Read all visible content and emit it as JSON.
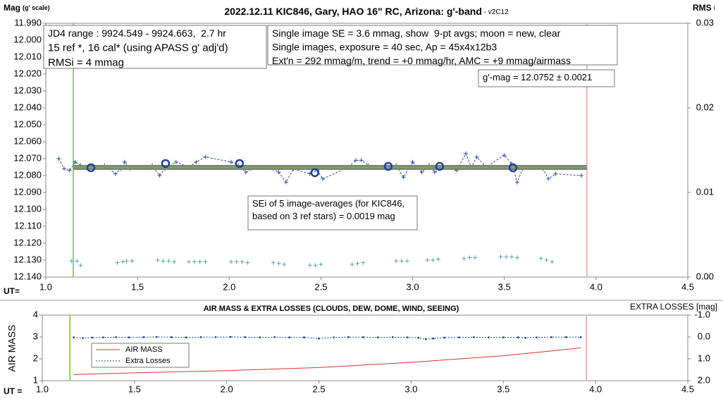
{
  "chart_data": [
    {
      "type": "scatter",
      "title": "2022.12.11 KIC846, Gary, HAO 16\" RC, Arizona: g'-band",
      "title_note": " - v2C12",
      "ylabel": "Mag",
      "ylabel_note": "(g' scale)",
      "y2label": "RMS",
      "y2label_note": "i",
      "xlabel": "UT=",
      "xlim": [
        1.0,
        4.5
      ],
      "xticks": [
        {
          "value": 1,
          "label": "1.0"
        },
        {
          "value": 1.5,
          "label": "1.5"
        },
        {
          "value": 2,
          "label": "2.0"
        },
        {
          "value": 2.5,
          "label": "2.5"
        },
        {
          "value": 3,
          "label": "3.0"
        },
        {
          "value": 3.5,
          "label": "3.5"
        },
        {
          "value": 4,
          "label": "4.0"
        },
        {
          "value": 4.5,
          "label": "4.5"
        }
      ],
      "ylim": [
        12.14,
        11.99
      ],
      "yticks": [
        {
          "value": 11.99,
          "label": "11.990"
        },
        {
          "value": 12.0,
          "label": "12.000"
        },
        {
          "value": 12.01,
          "label": "12.010"
        },
        {
          "value": 12.02,
          "label": "12.020"
        },
        {
          "value": 12.03,
          "label": "12.030"
        },
        {
          "value": 12.04,
          "label": "12.040"
        },
        {
          "value": 12.05,
          "label": "12.050"
        },
        {
          "value": 12.06,
          "label": "12.060"
        },
        {
          "value": 12.07,
          "label": "12.070"
        },
        {
          "value": 12.08,
          "label": "12.080"
        },
        {
          "value": 12.09,
          "label": "12.090"
        },
        {
          "value": 12.1,
          "label": "12.100"
        },
        {
          "value": 12.11,
          "label": "12.110"
        },
        {
          "value": 12.12,
          "label": "12.120"
        },
        {
          "value": 12.13,
          "label": "12.130"
        },
        {
          "value": 12.14,
          "label": "12.140"
        }
      ],
      "y2lim": [
        0,
        0.03
      ],
      "y2ticks": [
        {
          "value": 0,
          "label": "0.00"
        },
        0.01,
        0.02,
        0.03
      ],
      "vlines": [
        {
          "x": 1.15,
          "color": "#92d050"
        },
        {
          "x": 3.95,
          "color": "#f4b4b4"
        }
      ],
      "series": [
        {
          "color": "#2f55a4",
          "line": "dashed",
          "marker": "plus",
          "x": [
            1.07,
            1.1,
            1.13,
            1.16,
            1.19,
            1.32,
            1.38,
            1.41,
            1.43,
            1.46,
            1.58,
            1.62,
            1.65,
            1.71,
            1.78,
            1.82,
            1.87,
            2.01,
            2.05,
            2.09,
            2.12,
            2.24,
            2.27,
            2.31,
            2.35,
            2.44,
            2.48,
            2.51,
            2.65,
            2.69,
            2.72,
            2.76,
            2.91,
            2.95,
            3.0,
            3.05,
            3.09,
            3.12,
            3.17,
            3.24,
            3.29,
            3.32,
            3.35,
            3.4,
            3.5,
            3.54,
            3.57,
            3.6,
            3.71,
            3.74,
            3.78,
            3.92
          ],
          "values": [
            12.07,
            12.076,
            12.077,
            12.072,
            12.074,
            12.074,
            12.079,
            12.076,
            12.072,
            12.076,
            12.074,
            12.08,
            12.076,
            12.072,
            12.075,
            12.072,
            12.069,
            12.072,
            12.074,
            12.078,
            12.076,
            12.076,
            12.078,
            12.084,
            12.076,
            12.079,
            12.077,
            12.082,
            12.075,
            12.071,
            12.071,
            12.074,
            12.074,
            12.081,
            12.072,
            12.078,
            12.074,
            12.078,
            12.075,
            12.077,
            12.067,
            12.075,
            12.069,
            12.075,
            12.068,
            12.073,
            12.084,
            12.076,
            12.076,
            12.082,
            12.079,
            12.08
          ]
        },
        {
          "color": "#808080",
          "line": "solid",
          "width": 7,
          "x": [
            1.15,
            3.95
          ],
          "values": [
            12.0752,
            12.0752
          ]
        },
        {
          "color": "#70ad47",
          "line": "solid",
          "width": 2.5,
          "x": [
            1.15,
            3.95
          ],
          "values": [
            12.0752,
            12.0752
          ]
        },
        {
          "color": "#1f3fa0",
          "marker": "circle",
          "x": [
            1.246,
            1.653,
            2.056,
            2.467,
            2.867,
            3.147,
            3.547
          ],
          "values": [
            12.0754,
            12.0729,
            12.0729,
            12.0783,
            12.0746,
            12.0746,
            12.0754
          ]
        },
        {
          "color": "#5ba3b0",
          "marker": "plus",
          "axis": "y2",
          "x": [
            1.14,
            1.17,
            1.19,
            1.39,
            1.42,
            1.44,
            1.47,
            1.61,
            1.64,
            1.67,
            1.7,
            1.78,
            1.81,
            1.84,
            1.87,
            2.01,
            2.04,
            2.07,
            2.1,
            2.24,
            2.27,
            2.3,
            2.44,
            2.47,
            2.5,
            2.67,
            2.7,
            2.73,
            2.91,
            2.94,
            2.97,
            3.08,
            3.11,
            3.14,
            3.28,
            3.31,
            3.34,
            3.48,
            3.51,
            3.54,
            3.57,
            3.7,
            3.73,
            3.76
          ],
          "values": [
            0.0019,
            0.0019,
            0.0014,
            0.0017,
            0.0018,
            0.0019,
            0.0019,
            0.002,
            0.0019,
            0.0019,
            0.0018,
            0.0018,
            0.0018,
            0.0018,
            0.0018,
            0.0018,
            0.0018,
            0.0018,
            0.0017,
            0.0017,
            0.0016,
            0.0015,
            0.0014,
            0.0014,
            0.0015,
            0.0015,
            0.0016,
            0.0017,
            0.0019,
            0.0019,
            0.0019,
            0.002,
            0.002,
            0.0021,
            0.0022,
            0.0023,
            0.0023,
            0.0024,
            0.0024,
            0.0024,
            0.0023,
            0.0022,
            0.002,
            0.0018
          ]
        }
      ],
      "annotations": [
        {
          "lines": [
            "JD4 range : 9924.549 - 9924.663,  2.7 hr",
            "15 ref *, 16 cal* (using APASS g' adj'd)",
            "RMSi = 4 mmag"
          ]
        },
        {
          "lines": [
            "Single image SE = 3.6 mmag, show  9-pt avgs; moon = new, clear",
            "Single images, exposure = 40 sec, Ap = 45x4x12b3",
            "Ext'n = 292 mmag/m, trend = +0 mmag/hr, AMC = +9 mmag/airmass"
          ]
        },
        {
          "lines": [
            "g'-mag = 12.0752 ± 0.0021"
          ]
        },
        {
          "lines": [
            "SEi of 5 image-averages (for KIC846,",
            "based on 3 ref stars) = 0.0019 mag"
          ]
        }
      ]
    },
    {
      "type": "line",
      "title": "AIR MASS & EXTRA LOSSES (CLOUDS, DEW, DOME, WIND, SEEING)",
      "ylabel": "AIR MASS",
      "y2label": "EXTRA LOSSES [mag]",
      "xlabel": "UT =",
      "xlim": [
        1.0,
        4.5
      ],
      "xticks": [
        {
          "value": 1,
          "label": "1.0"
        },
        {
          "value": 1.5,
          "label": "1.5"
        },
        {
          "value": 2,
          "label": "2.0"
        },
        {
          "value": 2.5,
          "label": "2.5"
        },
        {
          "value": 3,
          "label": "3.0"
        },
        {
          "value": 3.5,
          "label": "3.5"
        },
        {
          "value": 4,
          "label": "4.0"
        },
        {
          "value": 4.5,
          "label": "4.5"
        }
      ],
      "ylim": [
        1,
        4
      ],
      "yticks": [
        1,
        2,
        3,
        4
      ],
      "y2lim": [
        2.0,
        -1.0
      ],
      "y2ticks": [
        {
          "value": -1,
          "label": "-1.0"
        },
        {
          "value": 0,
          "label": "0.0"
        },
        {
          "value": 1,
          "label": "1.0"
        },
        {
          "value": 2,
          "label": "2.0"
        }
      ],
      "legend": "lower-left",
      "vlines": [
        {
          "x": 1.15,
          "color": "#92d050"
        },
        {
          "x": 3.95,
          "color": "#f4b4b4"
        }
      ],
      "series": [
        {
          "name": "AIR MASS",
          "color": "#e0302a",
          "line": "solid",
          "x": [
            1.17,
            1.5,
            2.0,
            2.5,
            3.0,
            3.5,
            3.92
          ],
          "values": [
            1.28,
            1.36,
            1.46,
            1.6,
            1.84,
            2.14,
            2.5
          ]
        },
        {
          "name": "Extra Losses",
          "color": "#1f3b8f",
          "line": "dotted",
          "marker": "dot",
          "axis": "y2",
          "x": [
            1.17,
            1.22,
            1.27,
            1.33,
            1.4,
            1.47,
            1.55,
            1.62,
            1.7,
            1.78,
            1.86,
            1.94,
            2.02,
            2.1,
            2.18,
            2.26,
            2.34,
            2.42,
            2.5,
            2.58,
            2.66,
            2.74,
            2.82,
            2.9,
            2.98,
            3.04,
            3.08,
            3.12,
            3.18,
            3.26,
            3.34,
            3.42,
            3.5,
            3.58,
            3.62,
            3.68,
            3.76,
            3.84,
            3.92
          ],
          "values": [
            0.02,
            0.05,
            0.03,
            0.02,
            0.01,
            0.02,
            0.01,
            0.0,
            0.01,
            0.02,
            0.01,
            0.01,
            0.0,
            0.01,
            0.02,
            0.01,
            0.02,
            0.02,
            0.07,
            0.02,
            0.01,
            0.01,
            0.02,
            0.01,
            0.02,
            0.04,
            0.1,
            0.07,
            0.03,
            0.02,
            0.01,
            0.02,
            0.02,
            0.02,
            0.04,
            0.02,
            0.01,
            0.01,
            0.01
          ]
        }
      ]
    }
  ]
}
